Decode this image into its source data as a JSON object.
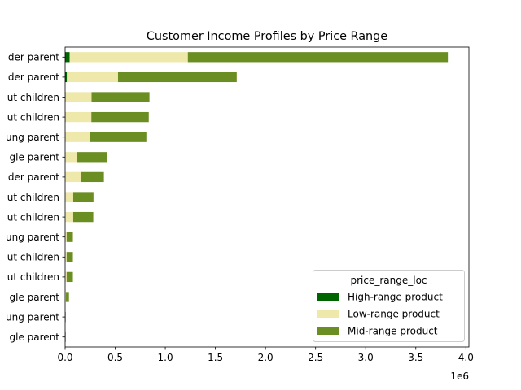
{
  "chart_data": {
    "type": "bar",
    "orientation": "horizontal",
    "stacked": true,
    "title": "Customer Income Profiles by Price Range",
    "xlabel": "",
    "ylabel": "",
    "x_offset_label": "1e6",
    "x_scale": 1000000,
    "xlim": [
      0,
      4030000
    ],
    "x_ticks": [
      0,
      0.5,
      1.0,
      1.5,
      2.0,
      2.5,
      3.0,
      3.5,
      4.0
    ],
    "x_tick_labels": [
      "0.0",
      "0.5",
      "1.0",
      "1.5",
      "2.0",
      "2.5",
      "3.0",
      "3.5",
      "4.0"
    ],
    "categories": [
      "der parent",
      "der parent",
      "ut children",
      "ut children",
      "ung parent",
      "gle parent",
      "der parent",
      "ut children",
      "ut children",
      "ung parent",
      "ut children",
      "ut children",
      "gle parent",
      "ung parent",
      "gle parent"
    ],
    "series": [
      {
        "name": "High-range product",
        "color": "#006400",
        "values": [
          45000,
          18000,
          4000,
          4000,
          3000,
          2000,
          2000,
          1000,
          1000,
          500,
          500,
          500,
          300,
          100,
          100
        ]
      },
      {
        "name": "Low-range product",
        "color": "#eee8aa",
        "values": [
          1180000,
          510000,
          260000,
          258000,
          245000,
          118000,
          160000,
          80000,
          80000,
          15000,
          15000,
          15000,
          8000,
          2000,
          2000
        ]
      },
      {
        "name": "Mid-range product",
        "color": "#6b8e23",
        "values": [
          2595000,
          1185000,
          578000,
          573000,
          563000,
          295000,
          225000,
          202000,
          200000,
          62000,
          62000,
          62000,
          30000,
          4000,
          4000
        ]
      }
    ],
    "grid": false,
    "legend": {
      "title": "price_range_loc",
      "placement": "lower-right"
    }
  }
}
